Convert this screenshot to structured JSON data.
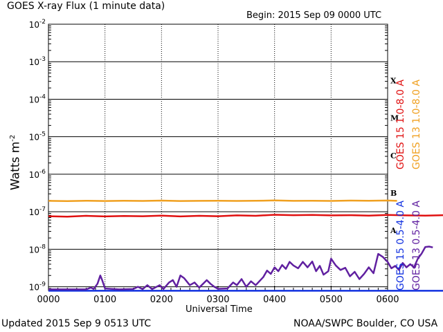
{
  "header": {
    "title": "GOES X-ray Flux (1 minute data)",
    "begin": "Begin: 2015 Sep 09 0000 UTC"
  },
  "footer": {
    "updated": "Updated 2015 Sep  9 0513 UTC",
    "credit": "NOAA/SWPC Boulder, CO USA"
  },
  "chart_data": {
    "type": "line",
    "xlabel": "Universal Time",
    "ylabel": "Watts m",
    "ylabel_sup": "-2",
    "x_ticks": [
      "0000",
      "0100",
      "0200",
      "0300",
      "0400",
      "0500",
      "0600"
    ],
    "xlim_minutes": [
      0,
      360
    ],
    "y_scale": "log",
    "ylim_exponent": [
      -9.1,
      -2
    ],
    "y_ticks": [
      {
        "base": "10",
        "exp": "-2"
      },
      {
        "base": "10",
        "exp": "-3"
      },
      {
        "base": "10",
        "exp": "-4"
      },
      {
        "base": "10",
        "exp": "-5"
      },
      {
        "base": "10",
        "exp": "-6"
      },
      {
        "base": "10",
        "exp": "-7"
      },
      {
        "base": "10",
        "exp": "-8"
      },
      {
        "base": "10",
        "exp": "-9"
      }
    ],
    "y_tick_exponents": [
      -2,
      -3,
      -4,
      -5,
      -6,
      -7,
      -8,
      -9
    ],
    "flare_classes": [
      {
        "label": "X",
        "exponent": -3.5
      },
      {
        "label": "M",
        "exponent": -4.5
      },
      {
        "label": "C",
        "exponent": -5.5
      },
      {
        "label": "B",
        "exponent": -6.5
      },
      {
        "label": "A",
        "exponent": -7.5
      }
    ],
    "grid": true,
    "legend_placement": "right, vertical",
    "series": [
      {
        "name": "GOES 15 1.0-8.0 A",
        "color": "#e01010",
        "points": [
          [
            0,
            7.6e-08
          ],
          [
            20,
            7.4e-08
          ],
          [
            40,
            7.8e-08
          ],
          [
            60,
            7.5e-08
          ],
          [
            80,
            7.7e-08
          ],
          [
            100,
            7.6e-08
          ],
          [
            120,
            7.9e-08
          ],
          [
            140,
            7.5e-08
          ],
          [
            160,
            7.8e-08
          ],
          [
            180,
            7.6e-08
          ],
          [
            200,
            8e-08
          ],
          [
            220,
            7.8e-08
          ],
          [
            240,
            8.3e-08
          ],
          [
            260,
            8.1e-08
          ],
          [
            280,
            8.2e-08
          ],
          [
            300,
            8e-08
          ],
          [
            320,
            8.1e-08
          ],
          [
            340,
            7.9e-08
          ],
          [
            360,
            8.2e-08
          ],
          [
            380,
            8e-08
          ],
          [
            400,
            7.9e-08
          ],
          [
            420,
            8.1e-08
          ]
        ]
      },
      {
        "name": "GOES 13 1.0-8.0 A",
        "color": "#f0a020",
        "points": [
          [
            0,
            1.95e-07
          ],
          [
            20,
            1.92e-07
          ],
          [
            40,
            1.97e-07
          ],
          [
            60,
            1.93e-07
          ],
          [
            80,
            1.96e-07
          ],
          [
            100,
            1.94e-07
          ],
          [
            120,
            1.98e-07
          ],
          [
            140,
            1.93e-07
          ],
          [
            160,
            1.95e-07
          ],
          [
            180,
            1.97e-07
          ],
          [
            200,
            1.94e-07
          ],
          [
            220,
            1.96e-07
          ],
          [
            240,
            2e-07
          ],
          [
            260,
            1.95e-07
          ],
          [
            280,
            1.97e-07
          ],
          [
            300,
            1.94e-07
          ],
          [
            320,
            1.98e-07
          ],
          [
            340,
            1.96e-07
          ],
          [
            360,
            1.99e-07
          ],
          [
            370,
            1.95e-07
          ]
        ]
      },
      {
        "name": "GOES 15 0.5-4.0 A",
        "color": "#1030e0",
        "points": [
          [
            0,
            7.8e-10
          ],
          [
            60,
            7.8e-10
          ],
          [
            120,
            7.8e-10
          ],
          [
            180,
            7.8e-10
          ],
          [
            240,
            7.8e-10
          ],
          [
            300,
            7.8e-10
          ],
          [
            360,
            7.8e-10
          ],
          [
            420,
            7.8e-10
          ]
        ]
      },
      {
        "name": "GOES 13 0.5-4.0 A",
        "color": "#6020a0",
        "points": [
          [
            0,
            8.5e-10
          ],
          [
            40,
            8.5e-10
          ],
          [
            45,
            9.5e-10
          ],
          [
            48,
            8.7e-10
          ],
          [
            52,
            1.2e-09
          ],
          [
            55,
            2e-09
          ],
          [
            57,
            1.5e-09
          ],
          [
            60,
            9e-10
          ],
          [
            75,
            8.5e-10
          ],
          [
            90,
            8.7e-10
          ],
          [
            95,
            1e-09
          ],
          [
            100,
            8.6e-10
          ],
          [
            105,
            1.1e-09
          ],
          [
            110,
            8.6e-10
          ],
          [
            118,
            1.1e-09
          ],
          [
            122,
            8.7e-10
          ],
          [
            128,
            1.3e-09
          ],
          [
            132,
            1.5e-09
          ],
          [
            136,
            1e-09
          ],
          [
            140,
            2e-09
          ],
          [
            144,
            1.7e-09
          ],
          [
            150,
            1.1e-09
          ],
          [
            155,
            1.3e-09
          ],
          [
            160,
            9.5e-10
          ],
          [
            168,
            1.5e-09
          ],
          [
            172,
            1.2e-09
          ],
          [
            176,
            1e-09
          ],
          [
            180,
            8.8e-10
          ],
          [
            190,
            9e-10
          ],
          [
            196,
            1.3e-09
          ],
          [
            200,
            1.1e-09
          ],
          [
            205,
            1.6e-09
          ],
          [
            210,
            1e-09
          ],
          [
            215,
            1.4e-09
          ],
          [
            220,
            1.1e-09
          ],
          [
            228,
            1.8e-09
          ],
          [
            232,
            2.7e-09
          ],
          [
            236,
            2.2e-09
          ],
          [
            240,
            3.3e-09
          ],
          [
            244,
            2.6e-09
          ],
          [
            248,
            3.8e-09
          ],
          [
            252,
            3e-09
          ],
          [
            256,
            4.6e-09
          ],
          [
            260,
            3.7e-09
          ],
          [
            265,
            3.1e-09
          ],
          [
            270,
            4.6e-09
          ],
          [
            275,
            3.3e-09
          ],
          [
            280,
            4.7e-09
          ],
          [
            284,
            2.6e-09
          ],
          [
            288,
            3.6e-09
          ],
          [
            292,
            2.1e-09
          ],
          [
            297,
            2.6e-09
          ],
          [
            300,
            5.6e-09
          ],
          [
            305,
            3.7e-09
          ],
          [
            310,
            2.8e-09
          ],
          [
            315,
            3.2e-09
          ],
          [
            320,
            1.9e-09
          ],
          [
            325,
            2.5e-09
          ],
          [
            330,
            1.6e-09
          ],
          [
            335,
            2.2e-09
          ],
          [
            340,
            3.3e-09
          ],
          [
            345,
            2.3e-09
          ],
          [
            350,
            7.5e-09
          ],
          [
            355,
            6.2e-09
          ],
          [
            360,
            4.6e-09
          ],
          [
            364,
            3.1e-09
          ],
          [
            368,
            3.6e-09
          ],
          [
            372,
            2.8e-09
          ],
          [
            376,
            4.3e-09
          ],
          [
            380,
            3.3e-09
          ],
          [
            384,
            4e-09
          ],
          [
            388,
            3.3e-09
          ],
          [
            392,
            5.6e-09
          ],
          [
            396,
            7.6e-09
          ],
          [
            400,
            1.15e-08
          ],
          [
            404,
            1.18e-08
          ],
          [
            408,
            1.12e-08
          ]
        ]
      }
    ]
  }
}
